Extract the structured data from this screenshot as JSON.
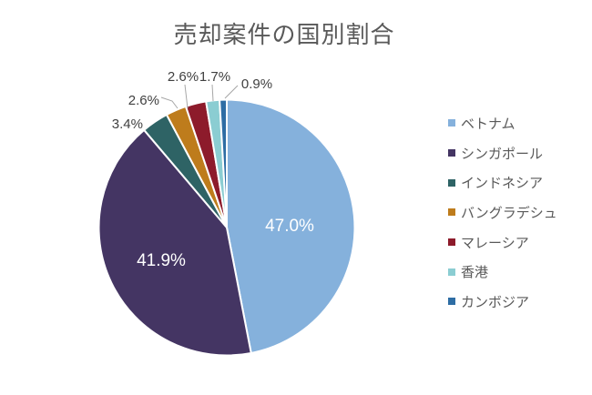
{
  "chart_data": {
    "type": "pie",
    "title": "売却案件の国別割合",
    "legend_position": "right",
    "direction": "clockwise",
    "start_angle_deg": 0,
    "grid": false,
    "series": [
      {
        "name": "ベトナム",
        "value": 47.0,
        "label": "47.0%",
        "color": "#85B1DC"
      },
      {
        "name": "シンガポール",
        "value": 41.9,
        "label": "41.9%",
        "color": "#443563"
      },
      {
        "name": "インドネシア",
        "value": 3.4,
        "label": "3.4%",
        "color": "#2E6365"
      },
      {
        "name": "バングラデシュ",
        "value": 2.6,
        "label": "2.6%",
        "color": "#BE7C1C"
      },
      {
        "name": "マレーシア",
        "value": 2.6,
        "label": "2.6%",
        "color": "#8D1B2B"
      },
      {
        "name": "香港",
        "value": 1.7,
        "label": "1.7%",
        "color": "#8BCDD2"
      },
      {
        "name": "カンボジア",
        "value": 0.9,
        "label": "0.9%",
        "color": "#2E6DA4"
      }
    ],
    "leader_line_color": "#A6A6A6"
  }
}
